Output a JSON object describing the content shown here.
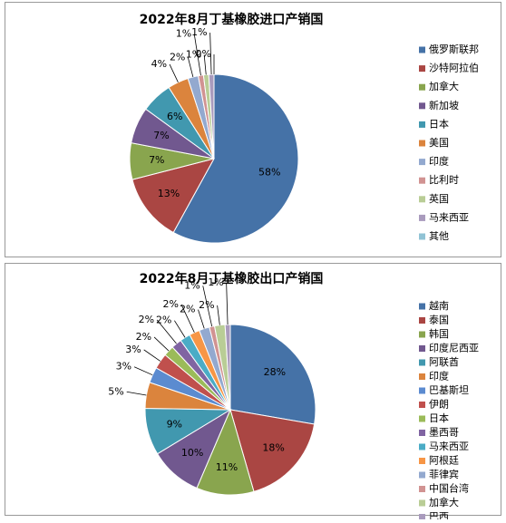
{
  "chart_data": [
    {
      "type": "pie",
      "title": "2022年8月丁基橡胶进口产销国",
      "categories": [
        "俄罗斯联邦",
        "沙特阿拉伯",
        "加拿大",
        "新加坡",
        "日本",
        "美国",
        "印度",
        "比利时",
        "英国",
        "马来西亚",
        "其他"
      ],
      "values": [
        58,
        13,
        7,
        7,
        6,
        4,
        2,
        1,
        1,
        1,
        0
      ],
      "value_labels": [
        "58%",
        "13%",
        "7%",
        "7%",
        "6%",
        "4%",
        "2%",
        "1%",
        "1%",
        "1%",
        "0%"
      ],
      "colors": [
        "#4572A7",
        "#AA4643",
        "#89A54E",
        "#71588F",
        "#4198AF",
        "#DB843D",
        "#93A9CF",
        "#D19392",
        "#B9CD96",
        "#A99BBD",
        "#91C3D5"
      ],
      "legend": "right"
    },
    {
      "type": "pie",
      "title": "2022年8月丁基橡胶出口产销国",
      "categories": [
        "越南",
        "泰国",
        "韩国",
        "印度尼西亚",
        "阿联酋",
        "印度",
        "巴基斯坦",
        "伊朗",
        "日本",
        "墨西哥",
        "马来西亚",
        "阿根廷",
        "菲律宾",
        "中国台湾",
        "加拿大",
        "巴西"
      ],
      "values": [
        28,
        18,
        11,
        10,
        9,
        5,
        3,
        3,
        2,
        2,
        2,
        2,
        2,
        1,
        2,
        1
      ],
      "value_labels": [
        "28%",
        "18%",
        "11%",
        "10%",
        "9%",
        "5%",
        "3%",
        "3%",
        "2%",
        "2%",
        "2%",
        "2%",
        "2%",
        "1%",
        "2%",
        "1%"
      ],
      "colors": [
        "#4572A7",
        "#AA4643",
        "#89A54E",
        "#71588F",
        "#4198AF",
        "#DB843D",
        "#5B8BD0",
        "#C0504D",
        "#9BBB59",
        "#8064A2",
        "#4BACC6",
        "#F79646",
        "#93A9CF",
        "#D19392",
        "#B9CD96",
        "#A99BBD"
      ],
      "legend": "right"
    }
  ]
}
